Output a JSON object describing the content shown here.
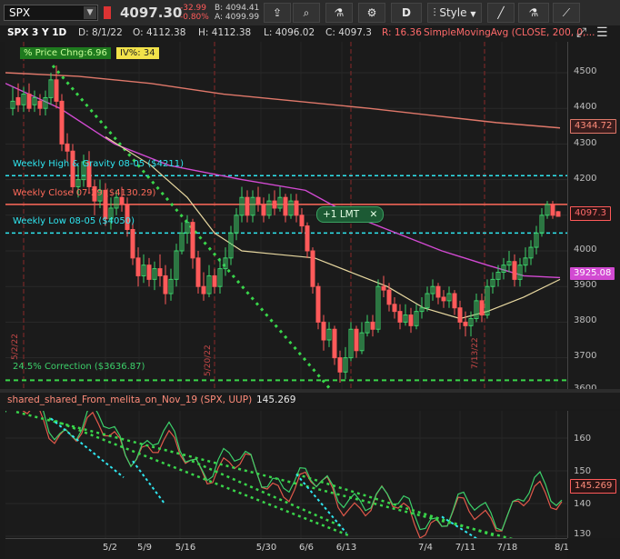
{
  "toolbar": {
    "symbol": "SPX",
    "last_price": "4097.30",
    "change": "-32.99",
    "change_pct": "-0.80%",
    "bid": "B: 4094.41",
    "ask": "A: 4099.99",
    "d_label": "D",
    "style_label": "Style"
  },
  "infobar": {
    "chart_title": "SPX 3 Y 1D",
    "date": "D: 8/1/22",
    "open": "O: 4112.38",
    "high": "H: 4112.38",
    "low": "L: 4096.02",
    "close": "C: 4097.3",
    "range": "R: 16.36",
    "study": "SimpleMovingAvg (CLOSE, 200, 0,..."
  },
  "badges": {
    "price_change": "% Price Chng:6.96",
    "iv": "IV%: 34"
  },
  "annotations": {
    "weekly_high": "Weekly High & Gravity 08-05 ($4211)",
    "weekly_close": "Weekly Close 07-29 ($4130.29)",
    "weekly_low": "Weekly Low 08-05 ($4050)",
    "correction": "24.5% Correction ($3636.87)",
    "order_chip": "+1 LMT",
    "vdate_1": "5/2/22",
    "vdate_2": "5/20/22",
    "vdate_3": "7/13/22"
  },
  "price_axis": {
    "ticks": [
      "4500",
      "4400",
      "4300",
      "4200",
      "4100",
      "4000",
      "3900",
      "3800",
      "3700",
      "3600"
    ],
    "tag_sma200": "4344.72",
    "tag_last": "4097.3",
    "tag_sma50": "3925.08"
  },
  "lower_study": {
    "title": "shared_shared_From_melita_on_Nov_19 (SPX, UUP)",
    "value": "145.269",
    "ticks": [
      "160",
      "150",
      "140",
      "130"
    ]
  },
  "date_axis": {
    "labels": [
      "5/2",
      "5/9",
      "5/16",
      "5/30",
      "6/6",
      "6/13",
      "7/4",
      "7/11",
      "7/18",
      "8/1"
    ]
  },
  "colors": {
    "up": "#3cd06a",
    "down": "#ff5a5a",
    "sma200": "#e0786a",
    "sma50": "#d24ad2",
    "sma20": "#e8d8a0",
    "cyan": "#2fe6f0",
    "trend": "#39d54a"
  }
}
